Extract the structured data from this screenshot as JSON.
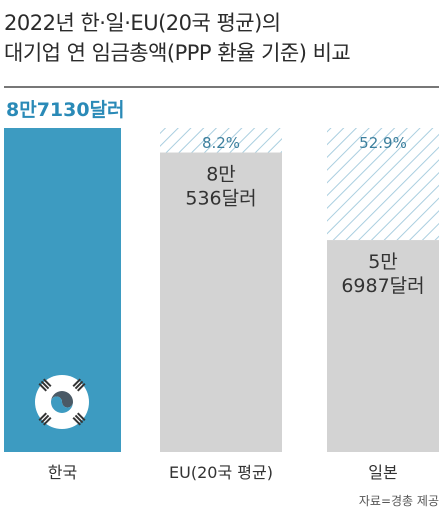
{
  "title_lines": [
    "2022년 한·일·EU(20국 평균)의",
    "대기업 연 임금총액(PPP 환율 기준) 비교"
  ],
  "source": "자료=경총 제공",
  "colors": {
    "korea": "#3d9bc1",
    "gray": "#d3d3d3",
    "hatch": "#aacfe0",
    "pct_text": "#3c7f9d",
    "value_text": "#333333",
    "top_value": "#2a8ab7"
  },
  "chart_data": {
    "type": "bar",
    "unit": "달러",
    "categories": [
      "한국",
      "EU(20국 평균)",
      "일본"
    ],
    "values": [
      87130,
      80536,
      56987
    ],
    "value_labels": [
      "8만7130달러",
      "8만\n536달러",
      "5만\n6987달러"
    ],
    "gap_labels": [
      "",
      "8.2%",
      "52.9%"
    ],
    "icon": "taegeuk-icon",
    "grid": false,
    "legend": "none"
  }
}
